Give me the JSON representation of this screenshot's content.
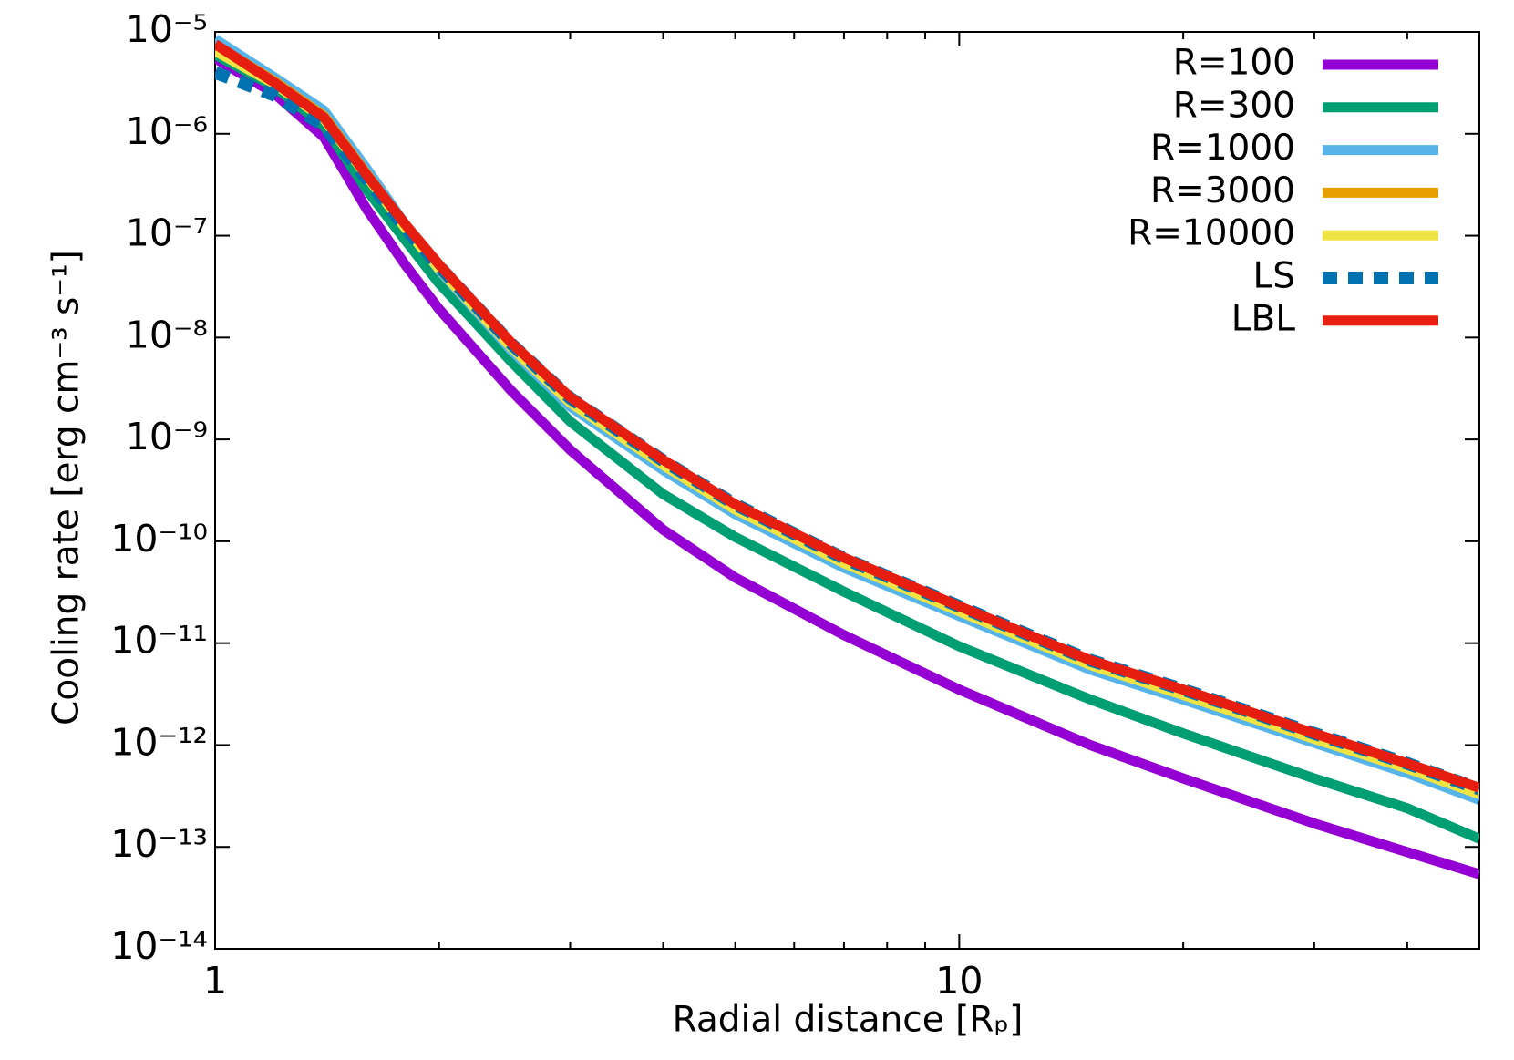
{
  "chart_data": {
    "type": "line",
    "x_label": "Radial distance [Rₚ]",
    "y_label": "Cooling rate [erg cm⁻³ s⁻¹]",
    "xscale": "log",
    "yscale": "log",
    "xlim": [
      1,
      50
    ],
    "ylim": [
      1e-14,
      1e-05
    ],
    "xticks": [
      1,
      10
    ],
    "yticks": [
      {
        "value": 1e-14,
        "label": "10⁻¹⁴"
      },
      {
        "value": 1e-13,
        "label": "10⁻¹³"
      },
      {
        "value": 1e-12,
        "label": "10⁻¹²"
      },
      {
        "value": 1e-11,
        "label": "10⁻¹¹"
      },
      {
        "value": 1e-10,
        "label": "10⁻¹⁰"
      },
      {
        "value": 1e-09,
        "label": "10⁻⁹"
      },
      {
        "value": 1e-08,
        "label": "10⁻⁸"
      },
      {
        "value": 1e-07,
        "label": "10⁻⁷"
      },
      {
        "value": 1e-06,
        "label": "10⁻⁶"
      },
      {
        "value": 1e-05,
        "label": "10⁻⁵"
      }
    ],
    "legend": "top-right",
    "x": [
      1,
      1.2,
      1.4,
      1.6,
      1.8,
      2,
      2.5,
      3,
      4,
      5,
      7,
      10,
      15,
      20,
      30,
      40,
      50
    ],
    "series": [
      {
        "name": "R=100",
        "color": "#9400d3",
        "style": "solid",
        "values": [
          5.5e-06,
          2.5e-06,
          9.3e-07,
          1.8e-07,
          5.2e-08,
          1.9e-08,
          3e-09,
          7.9e-10,
          1.3e-10,
          4.4e-11,
          1.2e-11,
          3.5e-12,
          1e-12,
          4.7e-13,
          1.7e-13,
          8.9e-14,
          5.4e-14
        ]
      },
      {
        "name": "R=300",
        "color": "#009e73",
        "style": "solid",
        "values": [
          6e-06,
          2.9e-06,
          1.2e-06,
          2.8e-07,
          9.1e-08,
          3.4e-08,
          5.8e-09,
          1.5e-09,
          2.9e-10,
          1.1e-10,
          3.2e-11,
          9.3e-12,
          2.8e-12,
          1.3e-12,
          4.7e-13,
          2.4e-13,
          1.2e-13
        ]
      },
      {
        "name": "R=1000",
        "color": "#56b4e9",
        "style": "solid",
        "values": [
          8.5e-06,
          3.6e-06,
          1.7e-06,
          4.5e-07,
          1.3e-07,
          4.6e-08,
          7.5e-09,
          2.1e-09,
          5e-10,
          1.85e-10,
          5.5e-11,
          1.85e-11,
          5.5e-12,
          2.8e-12,
          1.05e-12,
          5.3e-13,
          2.9e-13
        ]
      },
      {
        "name": "R=3000",
        "color": "#e69f00",
        "style": "solid",
        "values": [
          7.5e-06,
          3.3e-06,
          1.5e-06,
          4e-07,
          1.25e-07,
          4.8e-08,
          8.2e-09,
          2.35e-09,
          5.7e-10,
          2.1e-10,
          6.2e-11,
          2.1e-11,
          6.2e-12,
          3.2e-12,
          1.2e-12,
          6e-13,
          3.4e-13
        ]
      },
      {
        "name": "R=10000",
        "color": "#f0e442",
        "style": "solid",
        "values": [
          6.5e-06,
          3.1e-06,
          1.4e-06,
          3.8e-07,
          1.2e-07,
          4.7e-08,
          8e-09,
          2.3e-09,
          5.6e-10,
          2.05e-10,
          6.1e-11,
          2.05e-11,
          6.1e-12,
          3.1e-12,
          1.15e-12,
          5.9e-13,
          3.3e-13
        ]
      },
      {
        "name": "LS",
        "color": "#0072b2",
        "style": "dotted",
        "values": [
          4e-06,
          2.4e-06,
          1.2e-06,
          3.6e-07,
          1.2e-07,
          5e-08,
          8.7e-09,
          2.55e-09,
          6.2e-10,
          2.3e-10,
          6.8e-11,
          2.3e-11,
          6.8e-12,
          3.5e-12,
          1.3e-12,
          6.6e-13,
          3.7e-13
        ]
      },
      {
        "name": "LBL",
        "color": "#e51e10",
        "style": "solid",
        "values": [
          7.6e-06,
          3.2e-06,
          1.45e-06,
          3.9e-07,
          1.3e-07,
          5.2e-08,
          8.9e-09,
          2.6e-09,
          6.3e-10,
          2.3e-10,
          6.9e-11,
          2.3e-11,
          6.8e-12,
          3.5e-12,
          1.3e-12,
          6.6e-13,
          3.8e-13
        ]
      }
    ]
  }
}
